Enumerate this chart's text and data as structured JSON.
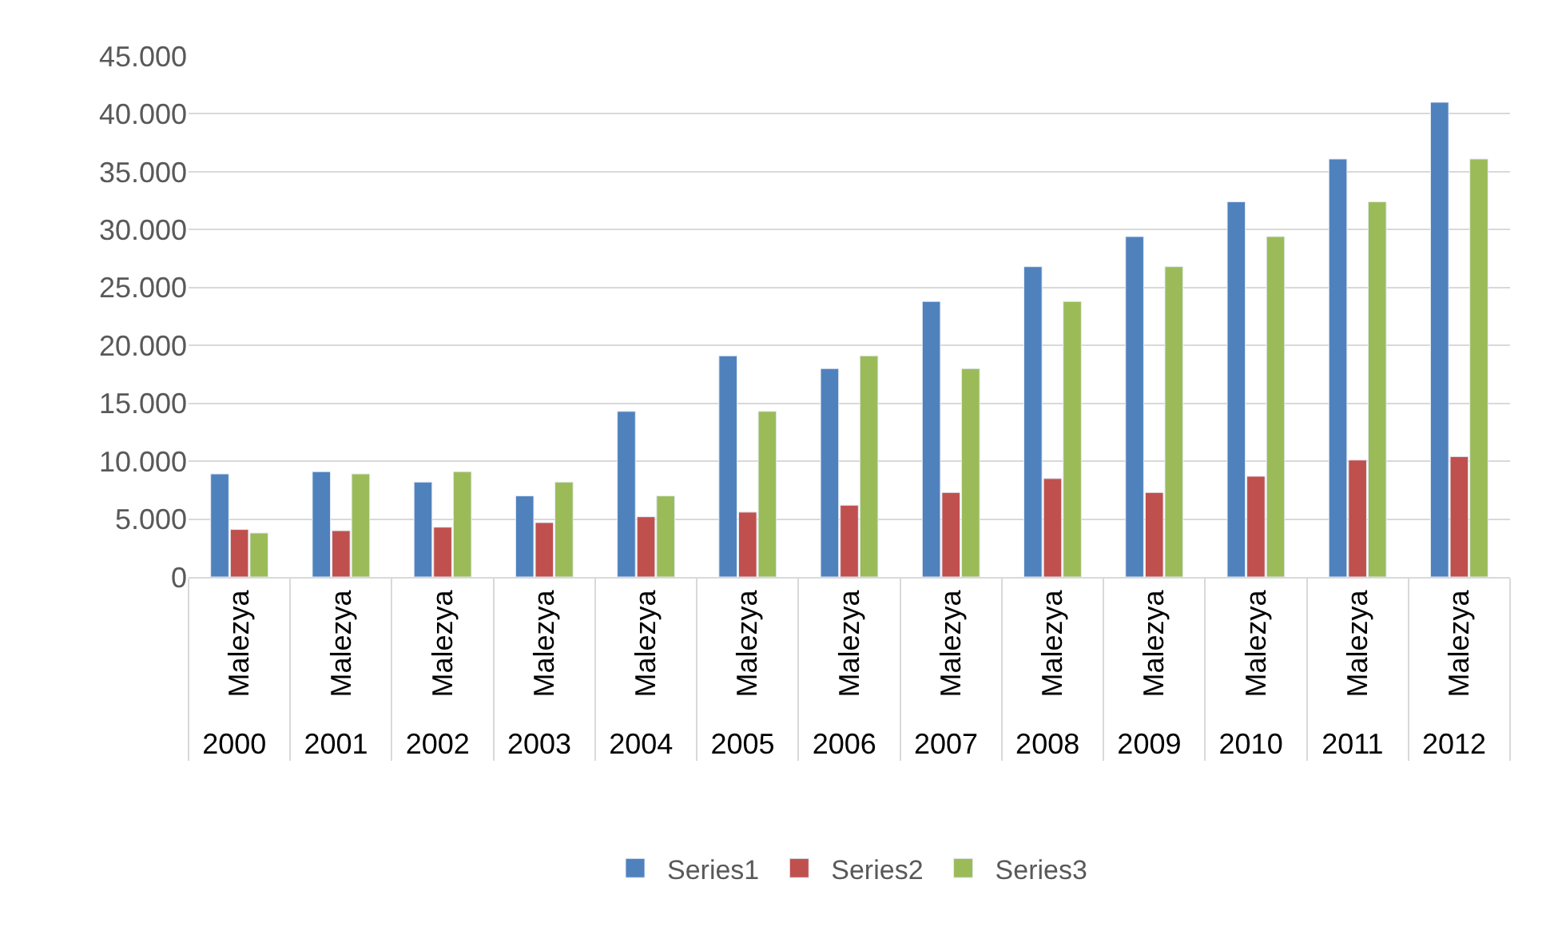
{
  "chart_data": {
    "type": "bar",
    "categories": [
      "2000",
      "2001",
      "2002",
      "2003",
      "2004",
      "2005",
      "2006",
      "2007",
      "2008",
      "2009",
      "2010",
      "2011",
      "2012"
    ],
    "annotations": [
      "Malezya",
      "Malezya",
      "Malezya",
      "Malezya",
      "Malezya",
      "Malezya",
      "Malezya",
      "Malezya",
      "Malezya",
      "Malezya",
      "Malezya",
      "Malezya",
      "Malezya"
    ],
    "series": [
      {
        "name": "Series1",
        "color": "#4f81bd",
        "values": [
          8900,
          9100,
          8200,
          7000,
          14300,
          19100,
          18000,
          23800,
          26800,
          29400,
          32400,
          36100,
          41000
        ]
      },
      {
        "name": "Series2",
        "color": "#c0504d",
        "values": [
          4100,
          4000,
          4300,
          4700,
          5200,
          5600,
          6200,
          7300,
          8500,
          7300,
          8700,
          10100,
          10400
        ]
      },
      {
        "name": "Series3",
        "color": "#9bbb59",
        "values": [
          3800,
          8900,
          9100,
          8200,
          7000,
          14300,
          19100,
          18000,
          23800,
          26800,
          29400,
          32400,
          36100
        ]
      }
    ],
    "ylim": [
      0,
      45000
    ],
    "yticks": [
      {
        "value": 0,
        "label": "0"
      },
      {
        "value": 5000,
        "label": "5.000"
      },
      {
        "value": 10000,
        "label": "10.000"
      },
      {
        "value": 15000,
        "label": "15.000"
      },
      {
        "value": 20000,
        "label": "20.000"
      },
      {
        "value": 25000,
        "label": "25.000"
      },
      {
        "value": 30000,
        "label": "30.000"
      },
      {
        "value": 35000,
        "label": "35.000"
      },
      {
        "value": 40000,
        "label": "40.000"
      },
      {
        "value": 45000,
        "label": "45.000"
      }
    ],
    "grid": "y",
    "legend": "bottom"
  }
}
